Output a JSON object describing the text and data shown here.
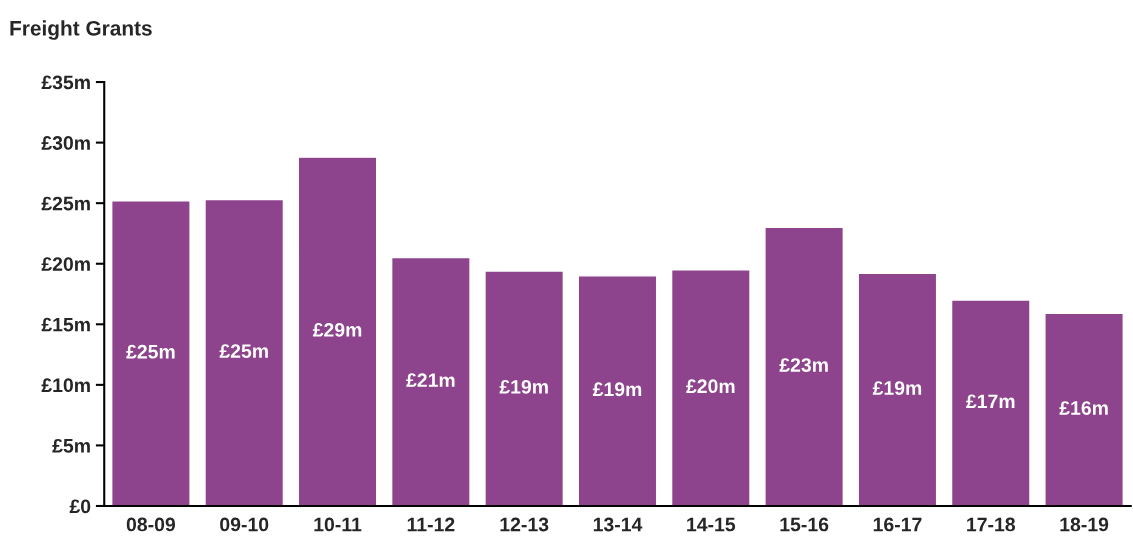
{
  "chart_data": {
    "type": "bar",
    "title": "Freight Grants",
    "categories": [
      "08-09",
      "09-10",
      "10-11",
      "11-12",
      "12-13",
      "13-14",
      "14-15",
      "15-16",
      "16-17",
      "17-18",
      "18-19"
    ],
    "values": [
      25.2,
      25.3,
      28.8,
      20.5,
      19.4,
      19.0,
      19.5,
      23.0,
      19.2,
      17.0,
      15.9
    ],
    "value_labels": [
      "£25m",
      "£25m",
      "£29m",
      "£21m",
      "£19m",
      "£19m",
      "£20m",
      "£23m",
      "£19m",
      "£17m",
      "£16m"
    ],
    "color": "#8d448d",
    "ylim": [
      0,
      35
    ],
    "yticks": [
      {
        "value": 0,
        "label": "£0"
      },
      {
        "value": 5,
        "label": "£5m"
      },
      {
        "value": 10,
        "label": "£10m"
      },
      {
        "value": 15,
        "label": "£15m"
      },
      {
        "value": 20,
        "label": "£20m"
      },
      {
        "value": 25,
        "label": "£25m"
      },
      {
        "value": 30,
        "label": "£30m"
      },
      {
        "value": 35,
        "label": "£35m"
      }
    ],
    "grid": false,
    "legend": false
  }
}
